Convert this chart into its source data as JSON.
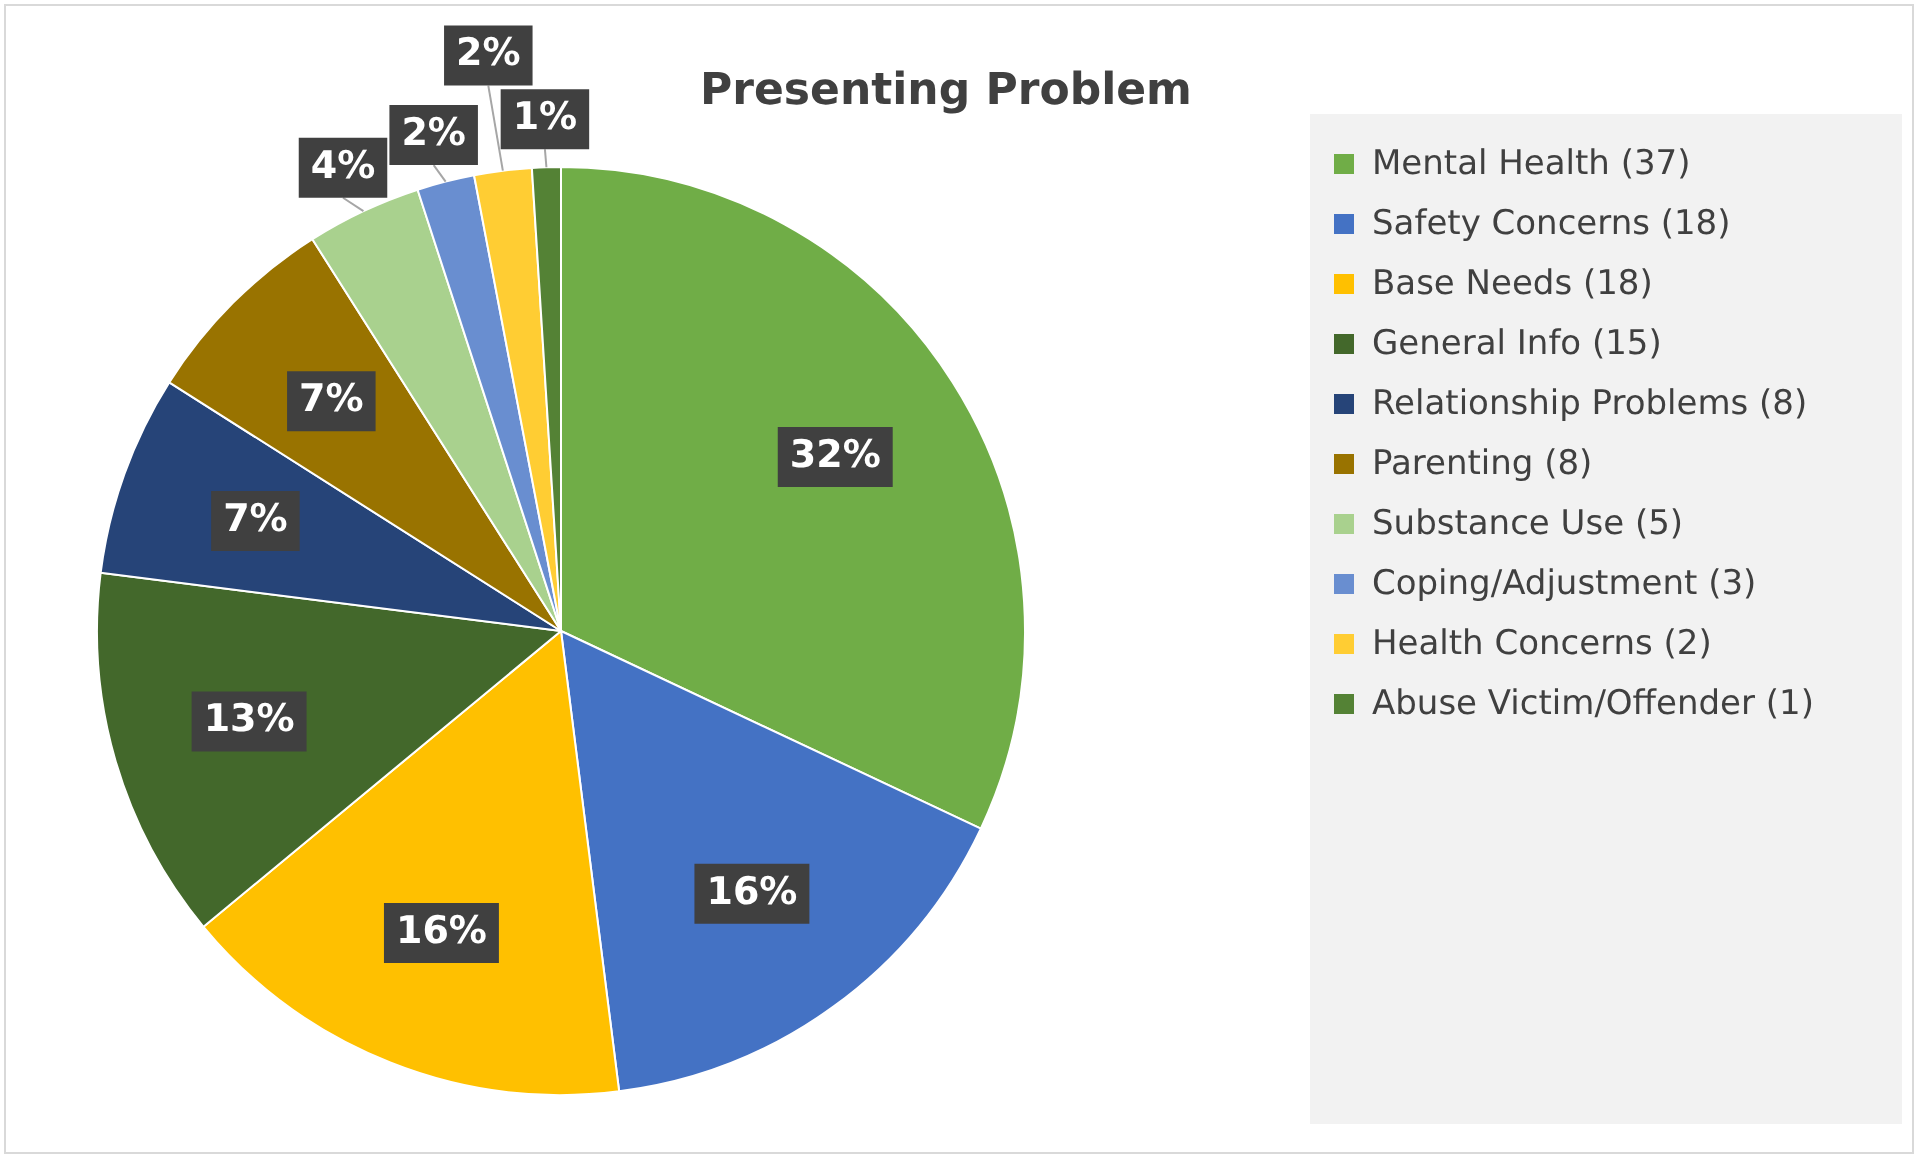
{
  "chart_data": {
    "type": "pie",
    "title": "Presenting Problem",
    "categories": [
      "Mental Health (37)",
      "Safety Concerns (18)",
      "Base Needs (18)",
      "General Info (15)",
      "Relationship Problems (8)",
      "Parenting (8)",
      "Substance Use (5)",
      "Coping/Adjustment (3)",
      "Health Concerns (2)",
      "Abuse Victim/Offender (1)"
    ],
    "values": [
      32,
      16,
      16,
      13,
      7,
      7,
      4,
      2,
      2,
      1
    ],
    "value_labels": [
      "32%",
      "16%",
      "16%",
      "13%",
      "7%",
      "7%",
      "4%",
      "2%",
      "2%",
      "1%"
    ],
    "colors": [
      "#70ad47",
      "#4472c4",
      "#ffc000",
      "#43682b",
      "#264478",
      "#997300",
      "#a9d18e",
      "#698ed0",
      "#ffcd33",
      "#548235"
    ],
    "legend": "right"
  }
}
